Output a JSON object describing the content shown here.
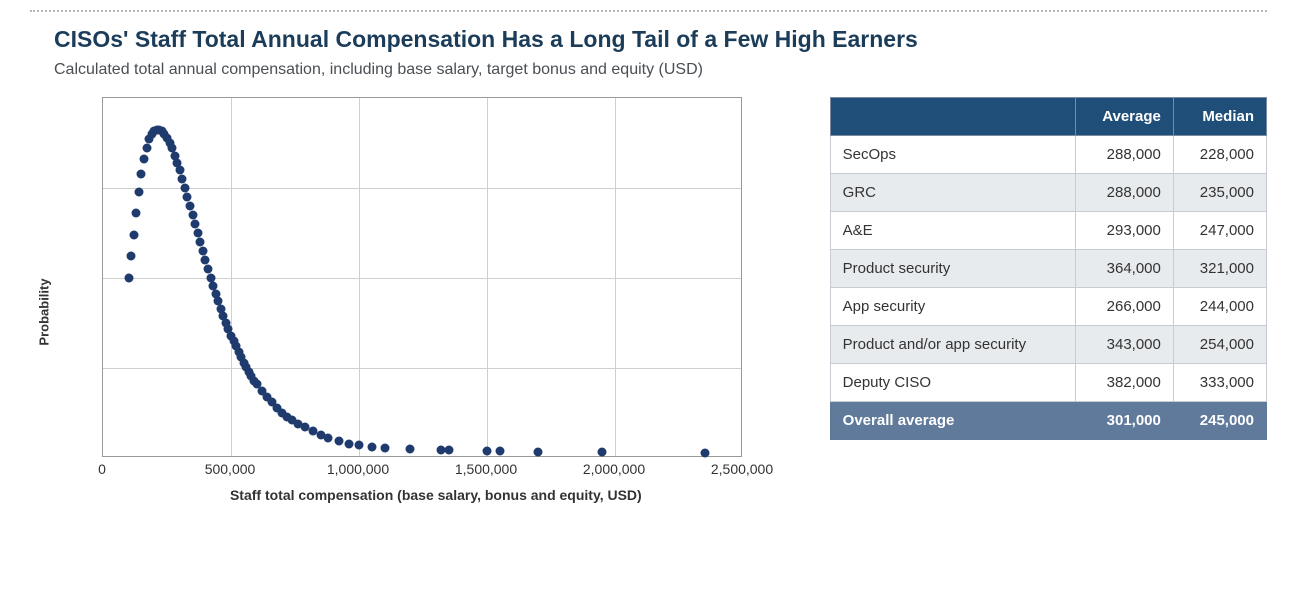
{
  "title": "CISOs' Staff Total Annual Compensation Has a Long Tail of a Few High Earners",
  "subtitle": "Calculated total annual compensation, including base salary, target bonus and equity (USD)",
  "chart": {
    "type": "scatter-density",
    "ylabel": "Probability",
    "xlabel": "Staff total compensation (base salary, bonus and equity, USD)",
    "xlim": [
      0,
      2500000
    ],
    "ylim": [
      0,
      1
    ],
    "x_ticks": [
      0,
      500000,
      1000000,
      1500000,
      2000000,
      2500000
    ],
    "x_tick_labels": [
      "0",
      "500,000",
      "1,000,000",
      "1,500,000",
      "2,000,000",
      "2,500,000"
    ],
    "h_gridlines": [
      0.25,
      0.5,
      0.75
    ],
    "marker_color": "#1f3b6e",
    "marker_size": 9,
    "grid_color": "#cfcfcf",
    "border_color": "#999999",
    "background_color": "#ffffff",
    "label_fontsize": 13,
    "tick_fontsize": 14,
    "title_color": "#1c3d5a",
    "points": [
      {
        "x": 100000,
        "y": 0.5
      },
      {
        "x": 110000,
        "y": 0.56
      },
      {
        "x": 120000,
        "y": 0.62
      },
      {
        "x": 130000,
        "y": 0.68
      },
      {
        "x": 140000,
        "y": 0.74
      },
      {
        "x": 150000,
        "y": 0.79
      },
      {
        "x": 160000,
        "y": 0.83
      },
      {
        "x": 170000,
        "y": 0.86
      },
      {
        "x": 180000,
        "y": 0.885
      },
      {
        "x": 190000,
        "y": 0.9
      },
      {
        "x": 200000,
        "y": 0.908
      },
      {
        "x": 210000,
        "y": 0.912
      },
      {
        "x": 220000,
        "y": 0.912
      },
      {
        "x": 230000,
        "y": 0.908
      },
      {
        "x": 240000,
        "y": 0.9
      },
      {
        "x": 250000,
        "y": 0.89
      },
      {
        "x": 260000,
        "y": 0.875
      },
      {
        "x": 270000,
        "y": 0.86
      },
      {
        "x": 280000,
        "y": 0.84
      },
      {
        "x": 290000,
        "y": 0.82
      },
      {
        "x": 300000,
        "y": 0.8
      },
      {
        "x": 310000,
        "y": 0.775
      },
      {
        "x": 320000,
        "y": 0.75
      },
      {
        "x": 330000,
        "y": 0.725
      },
      {
        "x": 340000,
        "y": 0.7
      },
      {
        "x": 350000,
        "y": 0.675
      },
      {
        "x": 360000,
        "y": 0.65
      },
      {
        "x": 370000,
        "y": 0.625
      },
      {
        "x": 380000,
        "y": 0.6
      },
      {
        "x": 390000,
        "y": 0.575
      },
      {
        "x": 400000,
        "y": 0.55
      },
      {
        "x": 410000,
        "y": 0.525
      },
      {
        "x": 420000,
        "y": 0.5
      },
      {
        "x": 430000,
        "y": 0.478
      },
      {
        "x": 440000,
        "y": 0.455
      },
      {
        "x": 450000,
        "y": 0.435
      },
      {
        "x": 460000,
        "y": 0.415
      },
      {
        "x": 470000,
        "y": 0.395
      },
      {
        "x": 480000,
        "y": 0.375
      },
      {
        "x": 490000,
        "y": 0.358
      },
      {
        "x": 500000,
        "y": 0.34
      },
      {
        "x": 510000,
        "y": 0.325
      },
      {
        "x": 520000,
        "y": 0.31
      },
      {
        "x": 530000,
        "y": 0.295
      },
      {
        "x": 540000,
        "y": 0.28
      },
      {
        "x": 550000,
        "y": 0.265
      },
      {
        "x": 560000,
        "y": 0.252
      },
      {
        "x": 570000,
        "y": 0.24
      },
      {
        "x": 580000,
        "y": 0.228
      },
      {
        "x": 590000,
        "y": 0.215
      },
      {
        "x": 600000,
        "y": 0.205
      },
      {
        "x": 620000,
        "y": 0.185
      },
      {
        "x": 640000,
        "y": 0.17
      },
      {
        "x": 660000,
        "y": 0.155
      },
      {
        "x": 680000,
        "y": 0.14
      },
      {
        "x": 700000,
        "y": 0.125
      },
      {
        "x": 720000,
        "y": 0.115
      },
      {
        "x": 740000,
        "y": 0.105
      },
      {
        "x": 760000,
        "y": 0.095
      },
      {
        "x": 790000,
        "y": 0.085
      },
      {
        "x": 820000,
        "y": 0.075
      },
      {
        "x": 850000,
        "y": 0.065
      },
      {
        "x": 880000,
        "y": 0.055
      },
      {
        "x": 920000,
        "y": 0.047
      },
      {
        "x": 960000,
        "y": 0.04
      },
      {
        "x": 1000000,
        "y": 0.035
      },
      {
        "x": 1050000,
        "y": 0.03
      },
      {
        "x": 1100000,
        "y": 0.027
      },
      {
        "x": 1200000,
        "y": 0.025
      },
      {
        "x": 1320000,
        "y": 0.022
      },
      {
        "x": 1350000,
        "y": 0.022
      },
      {
        "x": 1500000,
        "y": 0.02
      },
      {
        "x": 1550000,
        "y": 0.02
      },
      {
        "x": 1700000,
        "y": 0.018
      },
      {
        "x": 1950000,
        "y": 0.016
      },
      {
        "x": 2350000,
        "y": 0.015
      }
    ]
  },
  "table": {
    "header": [
      "",
      "Average",
      "Median"
    ],
    "header_bg": "#1f4e79",
    "header_fg": "#ffffff",
    "row_even_bg": "#ffffff",
    "row_odd_bg": "#e7ebee",
    "summary_bg": "#5f7a9b",
    "summary_fg": "#ffffff",
    "border_color": "#c8ccd2",
    "fontsize": 15,
    "rows": [
      {
        "category": "SecOps",
        "average": "288,000",
        "median": "228,000"
      },
      {
        "category": "GRC",
        "average": "288,000",
        "median": "235,000"
      },
      {
        "category": "A&E",
        "average": "293,000",
        "median": "247,000"
      },
      {
        "category": "Product security",
        "average": "364,000",
        "median": "321,000"
      },
      {
        "category": "App security",
        "average": "266,000",
        "median": "244,000"
      },
      {
        "category": "Product and/or app security",
        "average": "343,000",
        "median": "254,000"
      },
      {
        "category": "Deputy CISO",
        "average": "382,000",
        "median": "333,000"
      }
    ],
    "summary": {
      "category": "Overall average",
      "average": "301,000",
      "median": "245,000"
    }
  }
}
